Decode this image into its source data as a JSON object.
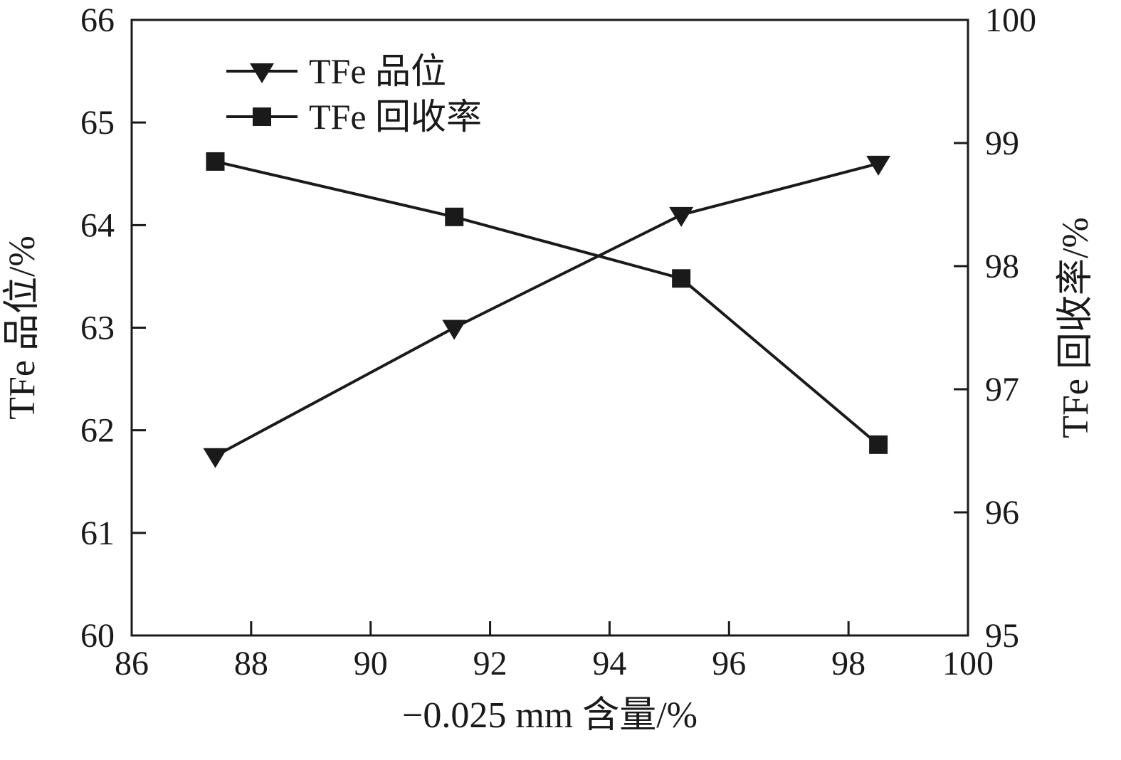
{
  "figure": {
    "background": "#ffffff",
    "ink": "#1a1a1a"
  },
  "chart_data": {
    "type": "line",
    "title": "",
    "xlabel": "−0.025 mm 含量/%",
    "ylabel_left": "TFe 品位/%",
    "ylabel_right": "TFe 回收率/%",
    "xlim": [
      86,
      100
    ],
    "xticks": [
      86,
      88,
      90,
      92,
      94,
      96,
      98,
      100
    ],
    "ylim_left": [
      60,
      66
    ],
    "yticks_left": [
      60,
      61,
      62,
      63,
      64,
      65,
      66
    ],
    "ylim_right": [
      95,
      100
    ],
    "yticks_right": [
      95,
      96,
      97,
      98,
      99,
      100
    ],
    "x": [
      87.4,
      91.4,
      95.2,
      98.5
    ],
    "series": [
      {
        "name": "TFe 品位",
        "axis": "left",
        "marker": "triangle-down",
        "values": [
          61.75,
          63.0,
          64.1,
          64.6
        ]
      },
      {
        "name": "TFe 回收率",
        "axis": "right",
        "marker": "square",
        "values": [
          98.85,
          98.4,
          97.9,
          96.55
        ]
      }
    ],
    "grid": false,
    "legend_position": "top-left-inside",
    "line_color": "#1a1a1a"
  }
}
